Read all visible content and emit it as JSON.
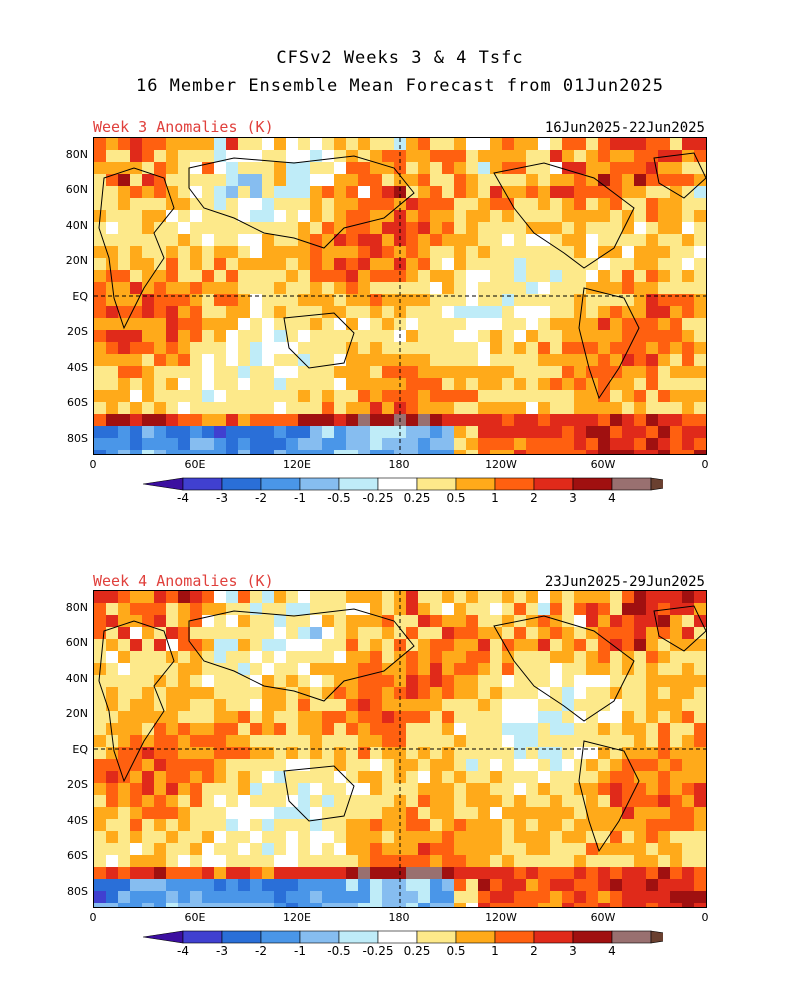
{
  "title_line1": "CFSv2 Weeks 3 & 4 Tsfc",
  "title_line2": "16 Member Ensemble Mean Forecast from 01Jun2025",
  "panels": [
    {
      "label": "Week 3 Anomalies (K)",
      "dates": "16Jun2025-22Jun2025"
    },
    {
      "label": "Week 4 Anomalies (K)",
      "dates": "23Jun2025-29Jun2025"
    }
  ],
  "lat_labels": [
    "80N",
    "60N",
    "40N",
    "20N",
    "EQ",
    "20S",
    "40S",
    "60S",
    "80S"
  ],
  "lon_labels": [
    "0",
    "60E",
    "120E",
    "180",
    "120W",
    "60W",
    "0"
  ],
  "colorbar": {
    "labels": [
      "-4",
      "-3",
      "-2",
      "-1",
      "-0.5",
      "-0.25",
      "0.25",
      "0.5",
      "1",
      "2",
      "3",
      "4"
    ],
    "colors": [
      "#3c0fa0",
      "#4040d0",
      "#2a6fd8",
      "#4a96e8",
      "#86bdf0",
      "#bfecf8",
      "#ffffff",
      "#fde98a",
      "#ffaa1a",
      "#ff6010",
      "#e02a1a",
      "#a01010",
      "#997070",
      "#6a4030"
    ]
  }
}
